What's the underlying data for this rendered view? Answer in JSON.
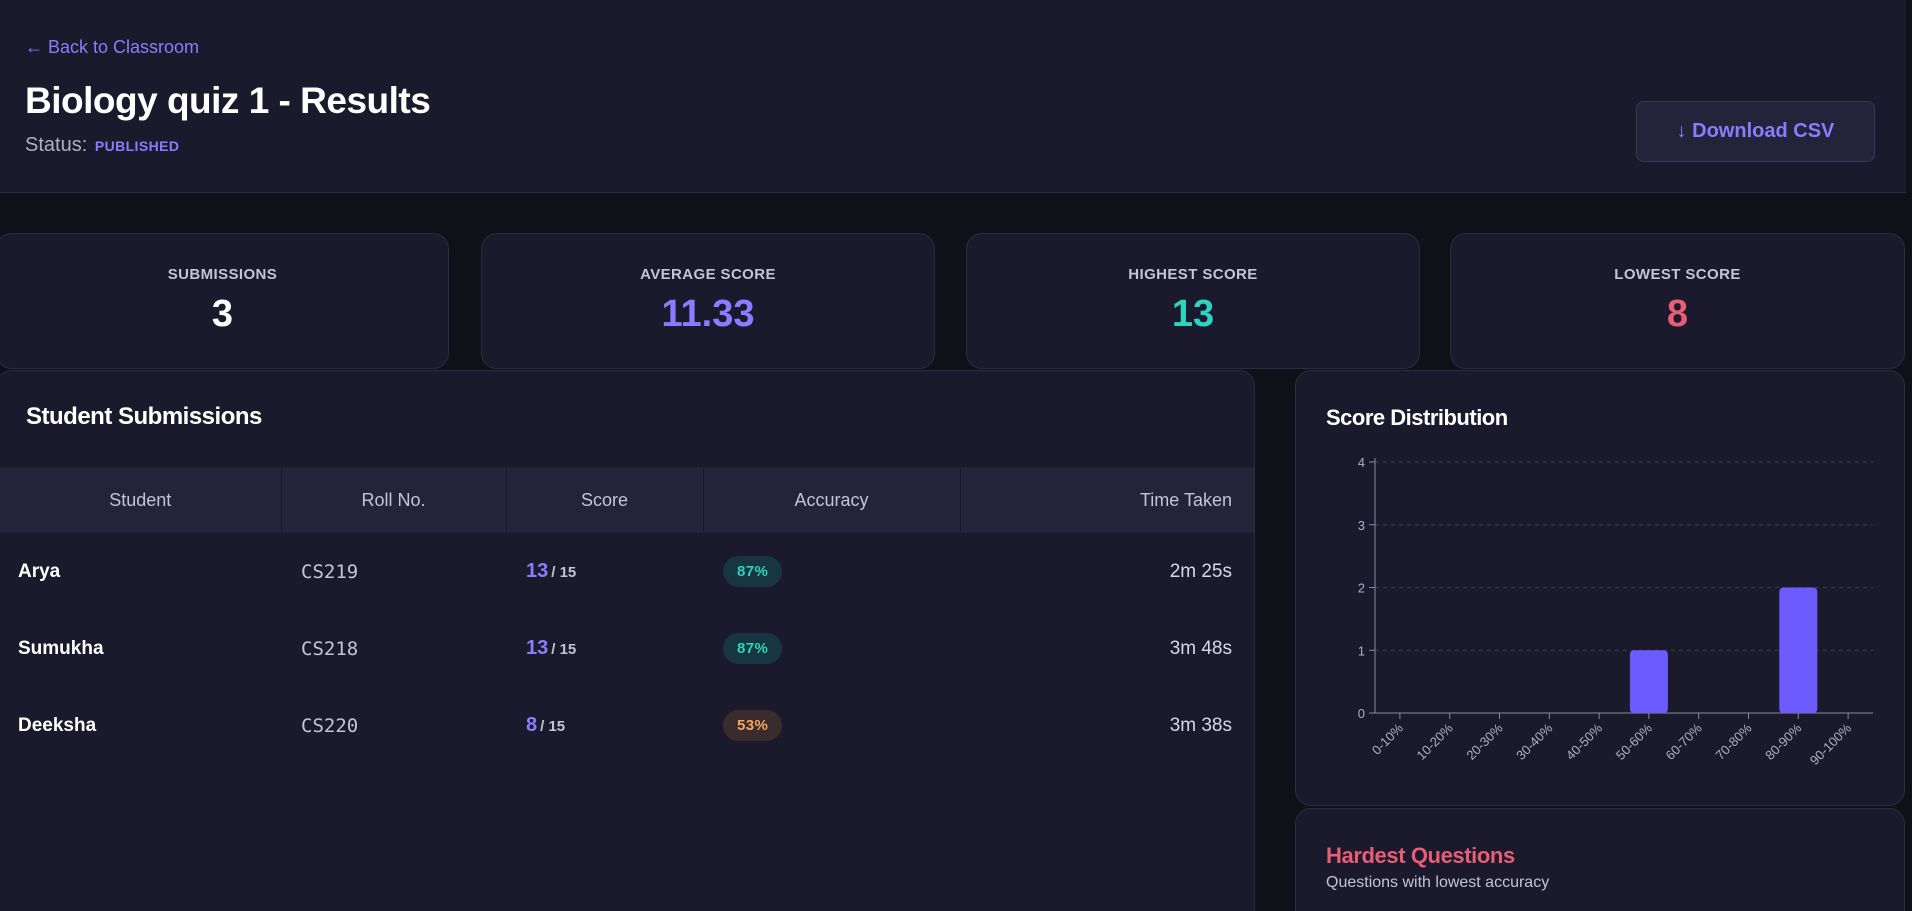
{
  "header": {
    "back_label": "← Back to Classroom",
    "title": "Biology quiz 1 - Results",
    "status_label": "Status:",
    "status_value": "PUBLISHED",
    "download_label": "↓ Download CSV"
  },
  "stats": [
    {
      "label": "SUBMISSIONS",
      "value": "3",
      "color": "#ffffff"
    },
    {
      "label": "AVERAGE SCORE",
      "value": "11.33",
      "color": "#8b7cff"
    },
    {
      "label": "HIGHEST SCORE",
      "value": "13",
      "color": "#2dd4bf"
    },
    {
      "label": "LOWEST SCORE",
      "value": "8",
      "color": "#e85d75"
    }
  ],
  "submissions": {
    "title": "Student Submissions",
    "columns": [
      "Student",
      "Roll No.",
      "Score",
      "Accuracy",
      "Time Taken"
    ],
    "rows": [
      {
        "name": "Arya",
        "roll": "CS219",
        "score": "13",
        "total": "/ 15",
        "accuracy": "87%",
        "time": "2m 25s"
      },
      {
        "name": "Sumukha",
        "roll": "CS218",
        "score": "13",
        "total": "/ 15",
        "accuracy": "87%",
        "time": "3m 48s"
      },
      {
        "name": "Deeksha",
        "roll": "CS220",
        "score": "8",
        "total": "/ 15",
        "accuracy": "53%",
        "time": "3m 38s"
      }
    ]
  },
  "distribution": {
    "title": "Score Distribution"
  },
  "chart_data": {
    "type": "bar",
    "categories": [
      "0-10%",
      "10-20%",
      "20-30%",
      "30-40%",
      "40-50%",
      "50-60%",
      "60-70%",
      "70-80%",
      "80-90%",
      "90-100%"
    ],
    "values": [
      0,
      0,
      0,
      0,
      0,
      1,
      0,
      0,
      2,
      0
    ],
    "yticks": [
      "0",
      "1",
      "2",
      "3",
      "4"
    ],
    "ylim": [
      0,
      4
    ],
    "grid": true,
    "bar_color": "#6c5cff"
  },
  "hardest": {
    "title": "Hardest Questions",
    "subtitle": "Questions with lowest accuracy"
  }
}
